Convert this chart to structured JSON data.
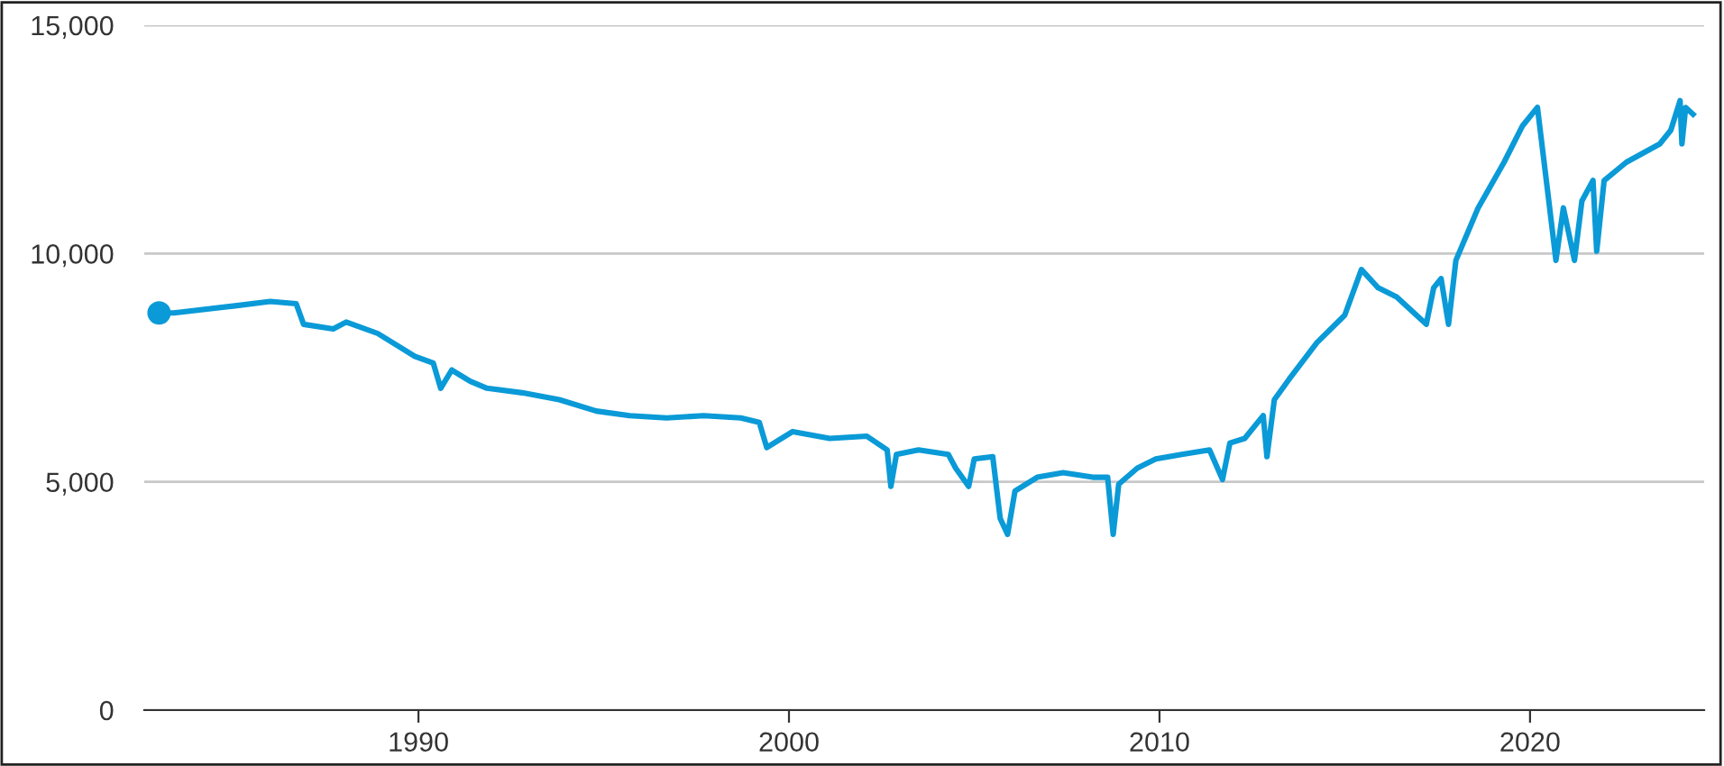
{
  "chart_data": {
    "type": "line",
    "xlim": [
      1982.6,
      2024.7
    ],
    "xticks": [
      1990,
      2000,
      2010,
      2020
    ],
    "ylim": [
      0,
      15000
    ],
    "yticks": [
      {
        "value": 0,
        "label": "0"
      },
      {
        "value": 5000,
        "label": "5,000"
      },
      {
        "value": 10000,
        "label": "10,000"
      },
      {
        "value": 15000,
        "label": "15,000"
      }
    ],
    "grid": "y",
    "legend": false,
    "line_style": "solid",
    "series": [
      {
        "color": "#0a9ad7",
        "x": [
          1983.0,
          1983.4,
          1985.0,
          1986.0,
          1986.7,
          1986.9,
          1987.7,
          1988.05,
          1988.9,
          1989.9,
          1990.4,
          1990.6,
          1990.9,
          1991.4,
          1991.85,
          1992.8,
          1993.8,
          1994.8,
          1995.7,
          1996.7,
          1997.7,
          1998.7,
          1999.2,
          1999.4,
          2000.1,
          2001.1,
          2002.1,
          2002.65,
          2002.75,
          2002.9,
          2003.5,
          2004.3,
          2004.5,
          2004.85,
          2005.0,
          2005.5,
          2005.7,
          2005.9,
          2006.1,
          2006.7,
          2007.4,
          2008.2,
          2008.6,
          2008.75,
          2008.9,
          2009.4,
          2009.9,
          2010.6,
          2011.35,
          2011.7,
          2011.9,
          2012.3,
          2012.8,
          2012.9,
          2013.1,
          2013.5,
          2014.25,
          2015.0,
          2015.45,
          2015.9,
          2016.4,
          2017.2,
          2017.4,
          2017.6,
          2017.8,
          2018.0,
          2018.6,
          2019.3,
          2019.8,
          2020.2,
          2020.5,
          2020.7,
          2020.9,
          2021.2,
          2021.4,
          2021.7,
          2021.8,
          2022.0,
          2022.6,
          2023.5,
          2023.8,
          2024.05,
          2024.1,
          2024.2,
          2024.4
        ],
        "values": [
          8700,
          8700,
          8850,
          8950,
          8900,
          8450,
          8350,
          8500,
          8250,
          7750,
          7600,
          7050,
          7450,
          7200,
          7050,
          6950,
          6800,
          6550,
          6450,
          6400,
          6450,
          6400,
          6300,
          5750,
          6100,
          5950,
          6000,
          5700,
          4900,
          5600,
          5700,
          5600,
          5300,
          4900,
          5500,
          5550,
          4200,
          3850,
          4800,
          5100,
          5200,
          5100,
          5100,
          3850,
          4950,
          5300,
          5500,
          5600,
          5700,
          5050,
          5850,
          5950,
          6450,
          5550,
          6800,
          7250,
          8050,
          8650,
          9650,
          9250,
          9050,
          8450,
          9250,
          9450,
          8450,
          9850,
          11000,
          12000,
          12800,
          13200,
          11200,
          9850,
          11000,
          9850,
          11150,
          11600,
          10050,
          11600,
          12000,
          12400,
          12700,
          13350,
          12400,
          13200,
          13050
        ]
      },
      {
        "type": "scatter",
        "color": "#0a9ad7",
        "marker": "circle",
        "x": [
          1983.0
        ],
        "values": [
          8700
        ]
      }
    ]
  }
}
